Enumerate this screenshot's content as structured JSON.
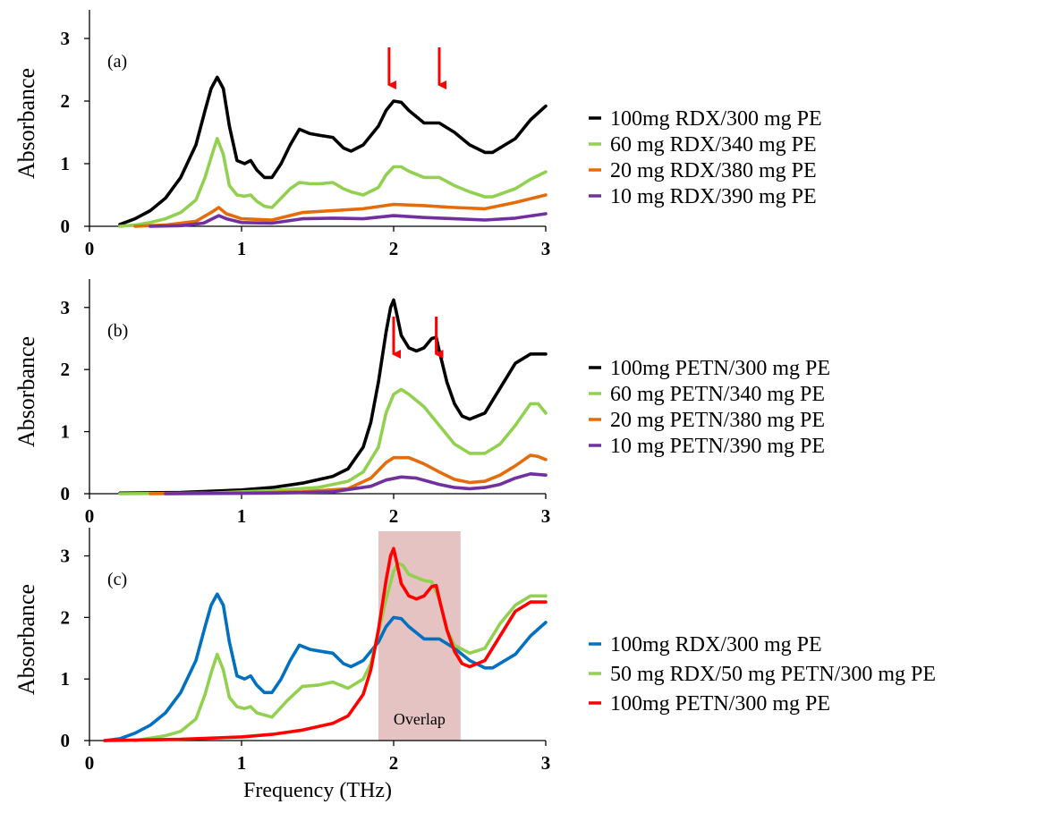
{
  "chart_data": [
    {
      "type": "line",
      "panel_label": "(a)",
      "xlabel": "",
      "ylabel": "Absorbance",
      "xlim": [
        0,
        3
      ],
      "ylim": [
        0,
        3.4
      ],
      "xticks": [
        "0",
        "1",
        "2",
        "3"
      ],
      "yticks": [
        "0",
        "1",
        "2",
        "3"
      ],
      "arrow_x": [
        1.97,
        2.3
      ],
      "legend_position": "right",
      "series": [
        {
          "name": "100mg RDX/300 mg PE",
          "color": "#000000",
          "x": [
            0.2,
            0.3,
            0.4,
            0.5,
            0.6,
            0.7,
            0.76,
            0.8,
            0.84,
            0.88,
            0.92,
            0.97,
            1.02,
            1.06,
            1.1,
            1.15,
            1.2,
            1.26,
            1.32,
            1.38,
            1.45,
            1.52,
            1.6,
            1.67,
            1.72,
            1.8,
            1.9,
            1.95,
            2.0,
            2.05,
            2.1,
            2.2,
            2.3,
            2.4,
            2.5,
            2.6,
            2.65,
            2.8,
            2.9,
            3.0
          ],
          "y": [
            0.03,
            0.12,
            0.25,
            0.45,
            0.78,
            1.3,
            1.85,
            2.2,
            2.38,
            2.2,
            1.6,
            1.05,
            1.0,
            1.05,
            0.9,
            0.78,
            0.78,
            1.0,
            1.3,
            1.55,
            1.48,
            1.45,
            1.42,
            1.25,
            1.2,
            1.3,
            1.6,
            1.85,
            2.0,
            1.98,
            1.85,
            1.65,
            1.65,
            1.5,
            1.3,
            1.18,
            1.18,
            1.4,
            1.7,
            1.92
          ]
        },
        {
          "name": "60  mg RDX/340 mg PE",
          "color": "#92D050",
          "x": [
            0.2,
            0.3,
            0.4,
            0.5,
            0.6,
            0.7,
            0.76,
            0.8,
            0.84,
            0.88,
            0.92,
            0.97,
            1.02,
            1.06,
            1.1,
            1.15,
            1.2,
            1.26,
            1.32,
            1.38,
            1.45,
            1.52,
            1.6,
            1.67,
            1.72,
            1.8,
            1.9,
            1.95,
            2.0,
            2.05,
            2.1,
            2.2,
            2.3,
            2.4,
            2.5,
            2.6,
            2.65,
            2.8,
            2.9,
            3.0
          ],
          "y": [
            0.0,
            0.02,
            0.06,
            0.12,
            0.22,
            0.42,
            0.78,
            1.1,
            1.4,
            1.15,
            0.65,
            0.5,
            0.48,
            0.5,
            0.4,
            0.32,
            0.3,
            0.45,
            0.6,
            0.7,
            0.68,
            0.68,
            0.7,
            0.6,
            0.55,
            0.5,
            0.62,
            0.82,
            0.95,
            0.95,
            0.88,
            0.78,
            0.78,
            0.65,
            0.55,
            0.47,
            0.47,
            0.6,
            0.75,
            0.87
          ]
        },
        {
          "name": "20  mg RDX/380 mg PE",
          "color": "#E46C0A",
          "x": [
            0.3,
            0.5,
            0.7,
            0.8,
            0.85,
            0.9,
            1.0,
            1.2,
            1.4,
            1.6,
            1.8,
            2.0,
            2.2,
            2.4,
            2.6,
            2.8,
            3.0
          ],
          "y": [
            0.0,
            0.02,
            0.08,
            0.22,
            0.3,
            0.2,
            0.12,
            0.1,
            0.22,
            0.25,
            0.28,
            0.35,
            0.33,
            0.3,
            0.28,
            0.38,
            0.5
          ]
        },
        {
          "name": "10  mg RDX/390 mg PE",
          "color": "#7030A0",
          "x": [
            0.4,
            0.6,
            0.75,
            0.85,
            0.9,
            1.0,
            1.2,
            1.4,
            1.6,
            1.8,
            2.0,
            2.2,
            2.4,
            2.6,
            2.8,
            3.0
          ],
          "y": [
            0.0,
            0.01,
            0.05,
            0.17,
            0.12,
            0.06,
            0.05,
            0.12,
            0.13,
            0.12,
            0.17,
            0.14,
            0.12,
            0.1,
            0.13,
            0.2
          ]
        }
      ]
    },
    {
      "type": "line",
      "panel_label": "(b)",
      "xlabel": "",
      "ylabel": "Absorbance",
      "xlim": [
        0,
        3
      ],
      "ylim": [
        0,
        3.4
      ],
      "xticks": [
        "0",
        "1",
        "2",
        "3"
      ],
      "yticks": [
        "0",
        "1",
        "2",
        "3"
      ],
      "arrow_x": [
        2.0,
        2.28
      ],
      "legend_position": "right",
      "series": [
        {
          "name": "100mg PETN/300 mg PE",
          "color": "#000000",
          "x": [
            0.2,
            0.6,
            1.0,
            1.2,
            1.4,
            1.6,
            1.7,
            1.8,
            1.85,
            1.9,
            1.95,
            1.98,
            2.0,
            2.02,
            2.05,
            2.1,
            2.15,
            2.2,
            2.25,
            2.28,
            2.3,
            2.35,
            2.4,
            2.45,
            2.5,
            2.6,
            2.7,
            2.8,
            2.9,
            3.0
          ],
          "y": [
            0.01,
            0.02,
            0.06,
            0.1,
            0.17,
            0.28,
            0.4,
            0.75,
            1.15,
            1.8,
            2.6,
            3.0,
            3.12,
            2.9,
            2.55,
            2.35,
            2.3,
            2.35,
            2.5,
            2.52,
            2.3,
            1.8,
            1.45,
            1.25,
            1.2,
            1.3,
            1.7,
            2.1,
            2.25,
            2.25
          ]
        },
        {
          "name": "60  mg PETN/340 mg PE",
          "color": "#92D050",
          "x": [
            0.2,
            0.8,
            1.2,
            1.5,
            1.7,
            1.8,
            1.9,
            1.95,
            2.0,
            2.05,
            2.1,
            2.2,
            2.3,
            2.4,
            2.5,
            2.6,
            2.7,
            2.8,
            2.9,
            2.95,
            3.0
          ],
          "y": [
            0.0,
            0.01,
            0.05,
            0.1,
            0.2,
            0.35,
            0.75,
            1.3,
            1.6,
            1.68,
            1.6,
            1.4,
            1.1,
            0.8,
            0.65,
            0.65,
            0.8,
            1.1,
            1.45,
            1.45,
            1.3
          ]
        },
        {
          "name": "20  mg PETN/380 mg PE",
          "color": "#E46C0A",
          "x": [
            0.4,
            1.0,
            1.4,
            1.7,
            1.85,
            1.95,
            2.0,
            2.1,
            2.2,
            2.3,
            2.4,
            2.5,
            2.6,
            2.7,
            2.8,
            2.9,
            2.95,
            3.0
          ],
          "y": [
            0.0,
            0.01,
            0.03,
            0.08,
            0.25,
            0.5,
            0.58,
            0.58,
            0.48,
            0.35,
            0.23,
            0.18,
            0.2,
            0.3,
            0.45,
            0.62,
            0.6,
            0.55
          ]
        },
        {
          "name": "10  mg PETN/390 mg PE",
          "color": "#7030A0",
          "x": [
            0.5,
            1.2,
            1.6,
            1.85,
            1.95,
            2.05,
            2.15,
            2.3,
            2.4,
            2.5,
            2.6,
            2.7,
            2.8,
            2.9,
            3.0
          ],
          "y": [
            0.0,
            0.01,
            0.03,
            0.12,
            0.22,
            0.27,
            0.25,
            0.15,
            0.1,
            0.08,
            0.1,
            0.15,
            0.25,
            0.32,
            0.3
          ]
        }
      ]
    },
    {
      "type": "line",
      "panel_label": "(c)",
      "xlabel": "Frequency (THz)",
      "ylabel": "Absorbance",
      "xlim": [
        0,
        3
      ],
      "ylim": [
        0,
        3.4
      ],
      "xticks": [
        "0",
        "1",
        "2",
        "3"
      ],
      "yticks": [
        "0",
        "1",
        "2",
        "3"
      ],
      "highlight": {
        "x0": 1.9,
        "x1": 2.44,
        "label": "Overlap",
        "color": "#E6C3C3"
      },
      "legend_position": "right",
      "series": [
        {
          "name": "100mg RDX/300 mg PE",
          "color": "#0070C0",
          "x": [
            0.1,
            0.2,
            0.3,
            0.4,
            0.5,
            0.6,
            0.7,
            0.76,
            0.8,
            0.84,
            0.88,
            0.92,
            0.97,
            1.02,
            1.06,
            1.1,
            1.15,
            1.2,
            1.26,
            1.32,
            1.38,
            1.45,
            1.52,
            1.6,
            1.67,
            1.72,
            1.8,
            1.9,
            1.95,
            2.0,
            2.05,
            2.1,
            2.2,
            2.3,
            2.4,
            2.5,
            2.6,
            2.65,
            2.8,
            2.9,
            3.0
          ],
          "y": [
            0.0,
            0.03,
            0.12,
            0.25,
            0.45,
            0.78,
            1.3,
            1.85,
            2.2,
            2.38,
            2.2,
            1.6,
            1.05,
            1.0,
            1.05,
            0.9,
            0.78,
            0.78,
            1.0,
            1.3,
            1.55,
            1.48,
            1.45,
            1.42,
            1.25,
            1.2,
            1.3,
            1.6,
            1.85,
            2.0,
            1.98,
            1.85,
            1.65,
            1.65,
            1.5,
            1.3,
            1.18,
            1.18,
            1.4,
            1.7,
            1.92
          ]
        },
        {
          "name": "50 mg RDX/50 mg PETN/300 mg PE",
          "color": "#92D050",
          "x": [
            0.3,
            0.5,
            0.6,
            0.7,
            0.76,
            0.8,
            0.84,
            0.88,
            0.92,
            0.97,
            1.02,
            1.06,
            1.1,
            1.2,
            1.3,
            1.4,
            1.5,
            1.6,
            1.7,
            1.8,
            1.85,
            1.9,
            1.95,
            2.0,
            2.03,
            2.06,
            2.1,
            2.2,
            2.25,
            2.3,
            2.35,
            2.4,
            2.5,
            2.6,
            2.7,
            2.8,
            2.9,
            3.0
          ],
          "y": [
            0.0,
            0.08,
            0.15,
            0.35,
            0.75,
            1.1,
            1.4,
            1.15,
            0.7,
            0.55,
            0.52,
            0.55,
            0.45,
            0.38,
            0.65,
            0.88,
            0.9,
            0.95,
            0.85,
            1.0,
            1.25,
            1.75,
            2.3,
            2.75,
            2.88,
            2.85,
            2.7,
            2.6,
            2.58,
            2.3,
            1.8,
            1.55,
            1.42,
            1.5,
            1.9,
            2.2,
            2.35,
            2.35
          ]
        },
        {
          "name": "100mg PETN/300 mg PE",
          "color": "#FF0000",
          "x": [
            0.1,
            0.6,
            1.0,
            1.2,
            1.4,
            1.6,
            1.7,
            1.8,
            1.85,
            1.9,
            1.95,
            1.98,
            2.0,
            2.02,
            2.05,
            2.1,
            2.15,
            2.2,
            2.25,
            2.28,
            2.3,
            2.35,
            2.4,
            2.45,
            2.5,
            2.6,
            2.7,
            2.8,
            2.9,
            3.0
          ],
          "y": [
            0.0,
            0.02,
            0.06,
            0.1,
            0.17,
            0.28,
            0.4,
            0.75,
            1.15,
            1.8,
            2.6,
            3.0,
            3.12,
            2.9,
            2.55,
            2.35,
            2.3,
            2.35,
            2.5,
            2.52,
            2.3,
            1.8,
            1.45,
            1.25,
            1.2,
            1.3,
            1.7,
            2.1,
            2.25,
            2.25
          ]
        }
      ]
    }
  ]
}
